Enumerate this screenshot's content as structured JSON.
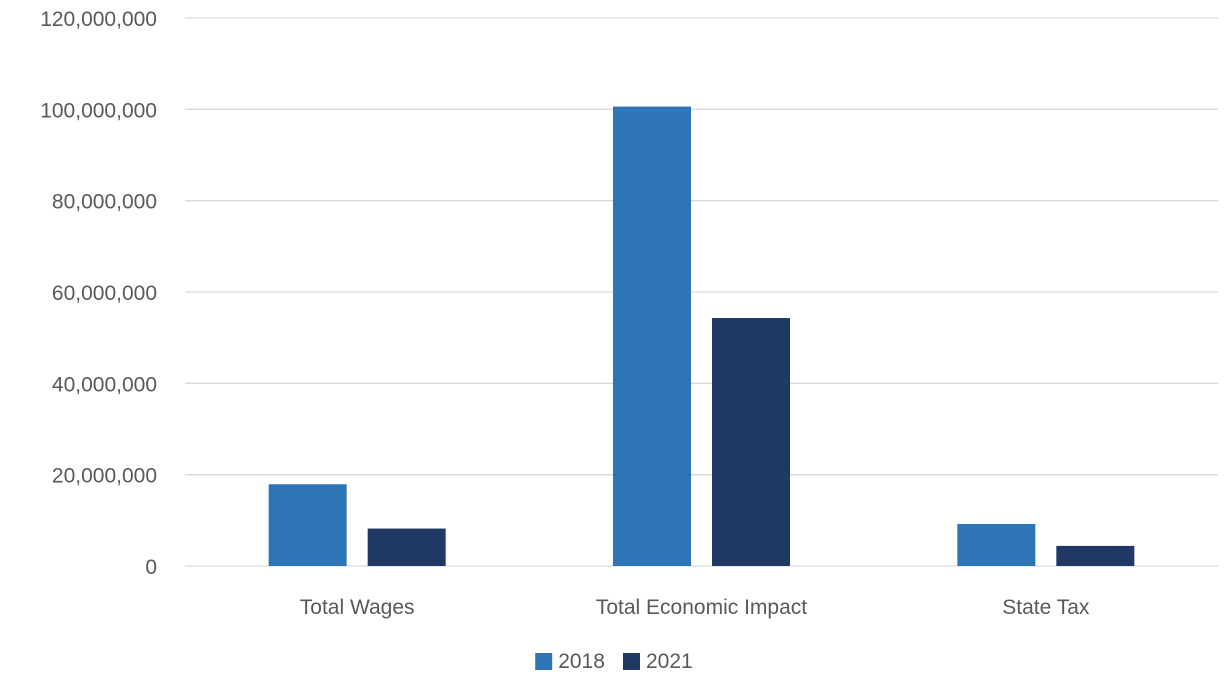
{
  "chart_data": {
    "type": "bar",
    "title": "",
    "xlabel": "",
    "ylabel": "",
    "categories": [
      "Total Wages",
      "Total Economic Impact",
      "State Tax"
    ],
    "series": [
      {
        "name": "2018",
        "values": [
          17900000,
          100600000,
          9200000
        ]
      },
      {
        "name": "2021",
        "values": [
          8200000,
          54300000,
          4400000
        ]
      }
    ],
    "ylim": [
      0,
      120000000
    ],
    "yticks": [
      0,
      20000000,
      40000000,
      60000000,
      80000000,
      100000000,
      120000000
    ],
    "ytick_labels": [
      "0",
      "20,000,000",
      "40,000,000",
      "60,000,000",
      "80,000,000",
      "100,000,000",
      "120,000,000"
    ],
    "grid": true,
    "legend_position": "bottom",
    "colors": {
      "series": [
        "#2e75b6",
        "#203864"
      ],
      "grid": "#d9d9d9",
      "text": "#595959"
    }
  }
}
